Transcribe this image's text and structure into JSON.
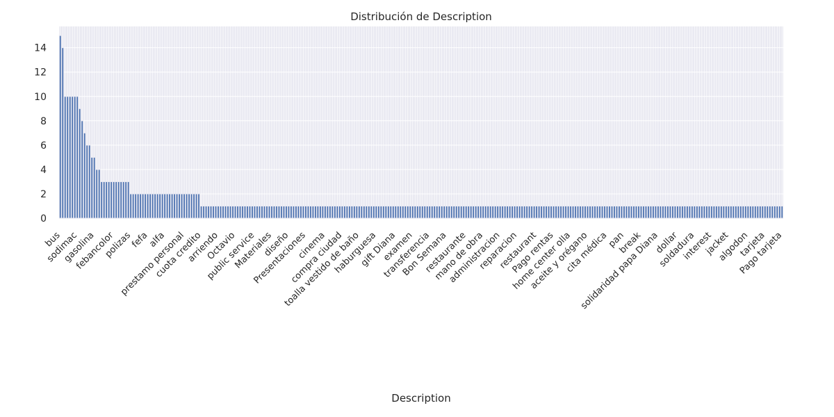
{
  "chart_data": {
    "type": "bar",
    "title": "Distribución de Description",
    "xlabel": "Description",
    "ylabel": "",
    "ylim": [
      0,
      15.75
    ],
    "yticks": [
      0,
      2,
      4,
      6,
      8,
      10,
      12,
      14
    ],
    "grid": true,
    "legend": "none",
    "bar_color": "#4c72b0",
    "bar_stroke": "#eaeaf2",
    "plot_background": "#eaeaf2",
    "visible_category_labels": [
      "bus",
      "sodimac",
      "gasolina",
      "febancolor",
      "polizas",
      "fefa",
      "alfa",
      "prestamo personal",
      "cuota credito",
      "arriendo",
      "Octavio",
      "public service",
      "Materiales",
      "diseño",
      "Presentaciones",
      "cinema",
      "compra ciudad",
      "toalla vestido de baño",
      "haburguesa",
      "gift Diana",
      "examen",
      "transferencia",
      "Bon Semana",
      "restaurante",
      "mano de obra",
      "administracion",
      "reparacion",
      "restaurant",
      "Pago rentas",
      "home center olla",
      "aceite y orégano",
      "cita médica",
      "pan",
      "break",
      "solidaridad papa Diana",
      "dollar",
      "soldadura",
      "interest",
      "jacket",
      "algodon",
      "tarjeta",
      "Pago tarjeta"
    ],
    "values": [
      15,
      14,
      10,
      10,
      10,
      10,
      10,
      10,
      9,
      8,
      7,
      6,
      6,
      5,
      5,
      4,
      4,
      3,
      3,
      3,
      3,
      3,
      3,
      3,
      3,
      3,
      3,
      3,
      3,
      2,
      2,
      2,
      2,
      2,
      2,
      2,
      2,
      2,
      2,
      2,
      2,
      2,
      2,
      2,
      2,
      2,
      2,
      2,
      2,
      2,
      2,
      2,
      2,
      2,
      2,
      2,
      2,
      2,
      1,
      1,
      1,
      1,
      1,
      1,
      1,
      1,
      1,
      1,
      1,
      1,
      1,
      1,
      1,
      1,
      1,
      1,
      1,
      1,
      1,
      1,
      1,
      1,
      1,
      1,
      1,
      1,
      1,
      1,
      1,
      1,
      1,
      1,
      1,
      1,
      1,
      1,
      1,
      1,
      1,
      1,
      1,
      1,
      1,
      1,
      1,
      1,
      1,
      1,
      1,
      1,
      1,
      1,
      1,
      1,
      1,
      1,
      1,
      1,
      1,
      1,
      1,
      1,
      1,
      1,
      1,
      1,
      1,
      1,
      1,
      1,
      1,
      1,
      1,
      1,
      1,
      1,
      1,
      1,
      1,
      1,
      1,
      1,
      1,
      1,
      1,
      1,
      1,
      1,
      1,
      1,
      1,
      1,
      1,
      1,
      1,
      1,
      1,
      1,
      1,
      1,
      1,
      1,
      1,
      1,
      1,
      1,
      1,
      1,
      1,
      1,
      1,
      1,
      1,
      1,
      1,
      1,
      1,
      1,
      1,
      1,
      1,
      1,
      1,
      1,
      1,
      1,
      1,
      1,
      1,
      1,
      1,
      1,
      1,
      1,
      1,
      1,
      1,
      1,
      1,
      1,
      1,
      1,
      1,
      1,
      1,
      1,
      1,
      1,
      1,
      1,
      1,
      1,
      1,
      1,
      1,
      1,
      1,
      1,
      1,
      1,
      1,
      1,
      1,
      1,
      1,
      1,
      1,
      1,
      1,
      1,
      1,
      1,
      1,
      1,
      1,
      1,
      1,
      1,
      1,
      1,
      1,
      1,
      1,
      1,
      1,
      1,
      1,
      1,
      1,
      1,
      1,
      1,
      1,
      1,
      1,
      1,
      1,
      1,
      1,
      1,
      1,
      1,
      1,
      1,
      1,
      1,
      1,
      1,
      1,
      1,
      1,
      1,
      1,
      1,
      1,
      1,
      1,
      1,
      1,
      1,
      1,
      1,
      1,
      1,
      1,
      1,
      1,
      1,
      1,
      1,
      1,
      1,
      1,
      1,
      1,
      1,
      1,
      1
    ]
  }
}
